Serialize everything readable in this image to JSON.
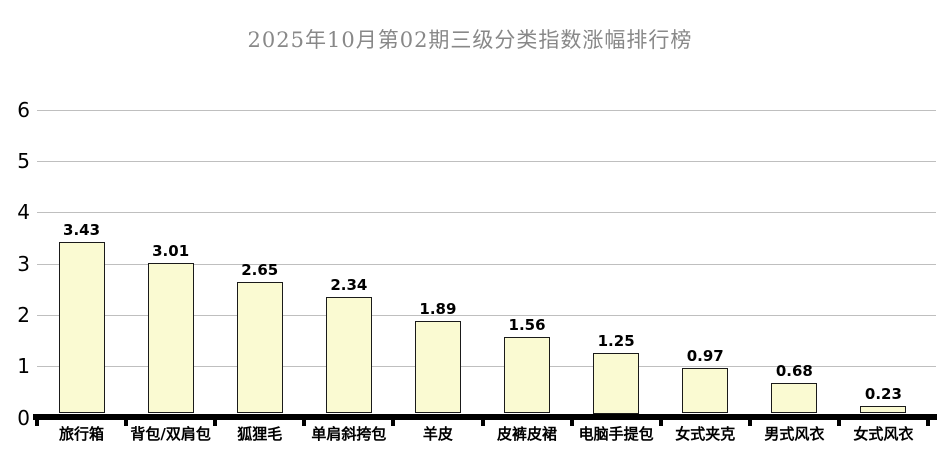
{
  "chart_data": {
    "type": "bar",
    "title": "2025年10月第02期三级分类指数涨幅排行榜",
    "categories": [
      "旅行箱",
      "背包/双肩包",
      "狐狸毛",
      "单肩斜挎包",
      "羊皮",
      "皮裤皮裙",
      "电脑手提包",
      "女式夹克",
      "男式风衣",
      "女式风衣"
    ],
    "values": [
      3.43,
      3.01,
      2.65,
      2.34,
      1.89,
      1.56,
      1.25,
      0.97,
      0.68,
      0.23
    ],
    "value_labels": [
      "3.43",
      "3.01",
      "2.65",
      "2.34",
      "1.89",
      "1.56",
      "1.25",
      "0.97",
      "0.68",
      "0.23"
    ],
    "xlabel": "",
    "ylabel": "",
    "ylim": [
      0,
      6
    ],
    "yticks": [
      0,
      1,
      2,
      3,
      4,
      5,
      6
    ],
    "grid": "horizontal",
    "legend_position": "none",
    "colors": {
      "background": "#FFFFFF",
      "bar_fill": "#FAFAD2",
      "bar_border": "#1A1A1A",
      "gridline": "#BFBFBF",
      "axis": "#000000",
      "title": "#888888",
      "value_label": "#000000",
      "tick_label": "#000000",
      "category_label": "#000000"
    }
  }
}
